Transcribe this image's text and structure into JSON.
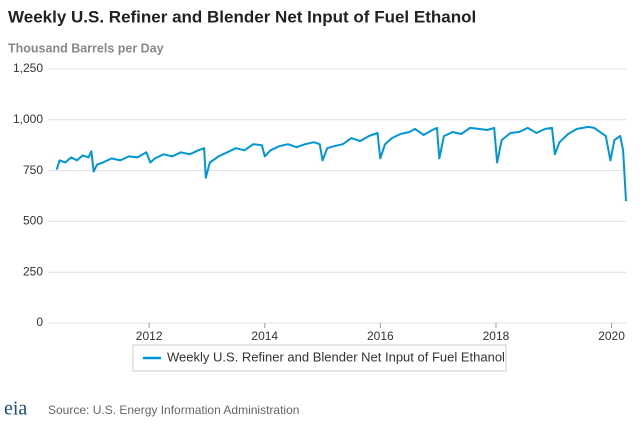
{
  "chart_data": {
    "type": "line",
    "title": "Weekly U.S. Refiner and Blender Net Input of Fuel Ethanol",
    "y_label": "Thousand Barrels per Day",
    "source": "Source: U.S. Energy Information Administration",
    "logo": "eia",
    "x": [
      2010.4,
      2010.45,
      2010.55,
      2010.65,
      2010.75,
      2010.85,
      2010.95,
      2011.0,
      2011.04,
      2011.1,
      2011.2,
      2011.35,
      2011.5,
      2011.65,
      2011.8,
      2011.95,
      2012.02,
      2012.1,
      2012.25,
      2012.4,
      2012.55,
      2012.7,
      2012.85,
      2012.95,
      2012.98,
      2013.05,
      2013.2,
      2013.35,
      2013.5,
      2013.65,
      2013.8,
      2013.95,
      2014.0,
      2014.1,
      2014.25,
      2014.4,
      2014.55,
      2014.7,
      2014.85,
      2014.95,
      2015.0,
      2015.08,
      2015.2,
      2015.35,
      2015.5,
      2015.65,
      2015.8,
      2015.95,
      2016.0,
      2016.08,
      2016.2,
      2016.35,
      2016.5,
      2016.6,
      2016.75,
      2016.9,
      2016.98,
      2017.02,
      2017.1,
      2017.25,
      2017.4,
      2017.55,
      2017.7,
      2017.85,
      2017.97,
      2018.02,
      2018.1,
      2018.25,
      2018.4,
      2018.55,
      2018.7,
      2018.85,
      2018.97,
      2019.02,
      2019.1,
      2019.25,
      2019.4,
      2019.5,
      2019.6,
      2019.7,
      2019.8,
      2019.9,
      2019.98,
      2020.05,
      2020.15,
      2020.2,
      2020.25
    ],
    "series": [
      {
        "name": "Weekly U.S. Refiner and Blender Net Input of Fuel Ethanol",
        "color": "#0096d7",
        "values": [
          755,
          800,
          790,
          815,
          800,
          825,
          815,
          845,
          745,
          780,
          790,
          810,
          800,
          820,
          815,
          840,
          790,
          810,
          830,
          820,
          840,
          830,
          850,
          860,
          715,
          790,
          820,
          840,
          860,
          850,
          880,
          875,
          820,
          850,
          870,
          880,
          865,
          880,
          890,
          880,
          800,
          860,
          870,
          880,
          910,
          895,
          920,
          935,
          810,
          880,
          910,
          930,
          940,
          955,
          925,
          950,
          960,
          810,
          920,
          940,
          930,
          960,
          955,
          950,
          960,
          790,
          900,
          935,
          940,
          960,
          935,
          955,
          960,
          830,
          890,
          930,
          955,
          960,
          965,
          960,
          940,
          920,
          800,
          900,
          920,
          850,
          600
        ]
      }
    ],
    "xlim": [
      2010.25,
      2020.25
    ],
    "xticks": [
      2012,
      2014,
      2016,
      2018,
      2020
    ],
    "ylim": [
      0,
      1250
    ],
    "yticks": [
      0,
      250,
      500,
      750,
      {
        "value": 1000,
        "label": "1,000"
      },
      {
        "value": 1250,
        "label": "1,250"
      }
    ],
    "grid": true
  }
}
